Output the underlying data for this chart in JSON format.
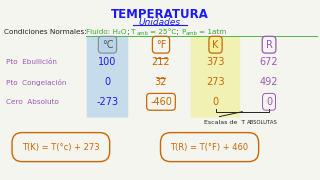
{
  "title": "TEMPERATURA",
  "subtitle": "Unidades",
  "bg_color": "#f5f5f0",
  "rows": [
    "Pto  Ebullición",
    "Pto  Congelación",
    "Cero  Absoluto"
  ],
  "col_headers": [
    "°C",
    "°F",
    "K",
    "R"
  ],
  "data_C": [
    "100",
    "0",
    "-273"
  ],
  "data_F": [
    "212",
    "32",
    "-460"
  ],
  "data_K": [
    "373",
    "273",
    "0"
  ],
  "data_R": [
    "672",
    "492",
    "0"
  ],
  "formula1": "T(K) = T(°c) + 273",
  "formula2": "T(R) = T(°F) + 460",
  "col_C_bg": "#b8d4e8",
  "col_K_bg": "#f0f0a0",
  "title_color": "#1a1aff",
  "subtitle_color": "#1a1aff",
  "row_label_color": "#9b59b6",
  "C_color": "#1a1aff",
  "F_color": "#cc6600",
  "K_color": "#cc6600",
  "R_color": "#9b59b6",
  "formula_color": "#cc6600",
  "cond_color": "#33aa33",
  "black_color": "#222222"
}
